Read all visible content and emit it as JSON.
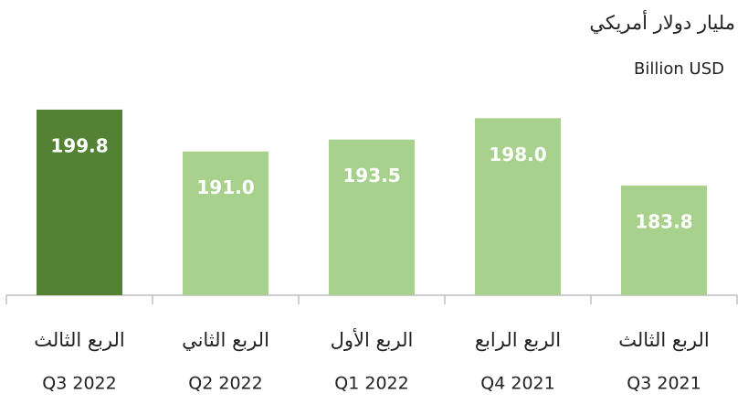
{
  "chart_data": {
    "type": "bar",
    "title": "مليار دولار أمريكي",
    "subtitle": "Billion USD",
    "categories": [
      "Q3 2022",
      "Q2 2022",
      "Q1 2022",
      "Q4 2021",
      "Q3 2021"
    ],
    "category_labels_ar": [
      "الربع الثالث",
      "الربع الثاني",
      "الربع الأول",
      "الربع الرابع",
      "الربع الثالث"
    ],
    "values": [
      199.8,
      191,
      193.5,
      198,
      183.8
    ],
    "value_labels": [
      "199.8",
      "191.0",
      "193.5",
      "198.0",
      "183.8"
    ],
    "colors": [
      "#548235",
      "#a9d18e",
      "#a9d18e",
      "#a9d18e",
      "#a9d18e"
    ],
    "ylim": [
      160.7,
      210
    ]
  }
}
